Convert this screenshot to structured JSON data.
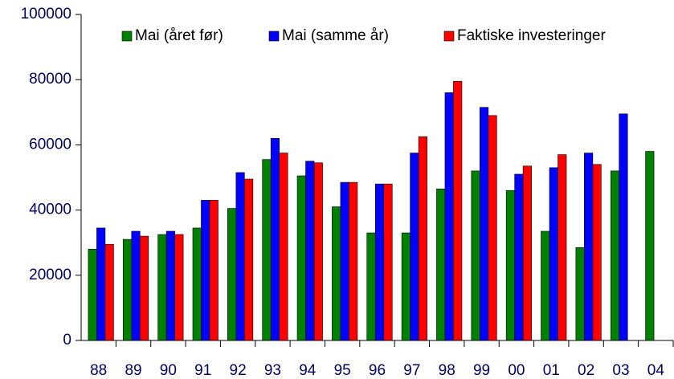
{
  "chart_data": {
    "type": "bar",
    "categories": [
      "88",
      "89",
      "90",
      "91",
      "92",
      "93",
      "94",
      "95",
      "96",
      "97",
      "98",
      "99",
      "00",
      "01",
      "02",
      "03",
      "04"
    ],
    "series": [
      {
        "name": "Mai (året før)",
        "color": "#008000",
        "values": [
          28000,
          31000,
          32500,
          34500,
          40500,
          55500,
          50500,
          41000,
          33000,
          33000,
          46500,
          52000,
          46000,
          33500,
          28500,
          52000,
          58000
        ]
      },
      {
        "name": "Mai (samme år)",
        "color": "#0000ff",
        "values": [
          34500,
          33500,
          33500,
          43000,
          51500,
          62000,
          55000,
          48500,
          48000,
          57500,
          76000,
          71500,
          51000,
          53000,
          57500,
          69500,
          null
        ]
      },
      {
        "name": "Faktiske investeringer",
        "color": "#ff0000",
        "values": [
          29500,
          32000,
          32500,
          43000,
          49500,
          57500,
          54500,
          48500,
          48000,
          62500,
          79500,
          69000,
          53500,
          57000,
          54000,
          null,
          null
        ]
      }
    ],
    "ylim": [
      0,
      100000
    ],
    "yticks": [
      0,
      20000,
      40000,
      60000,
      80000,
      100000
    ],
    "legend": "top"
  }
}
